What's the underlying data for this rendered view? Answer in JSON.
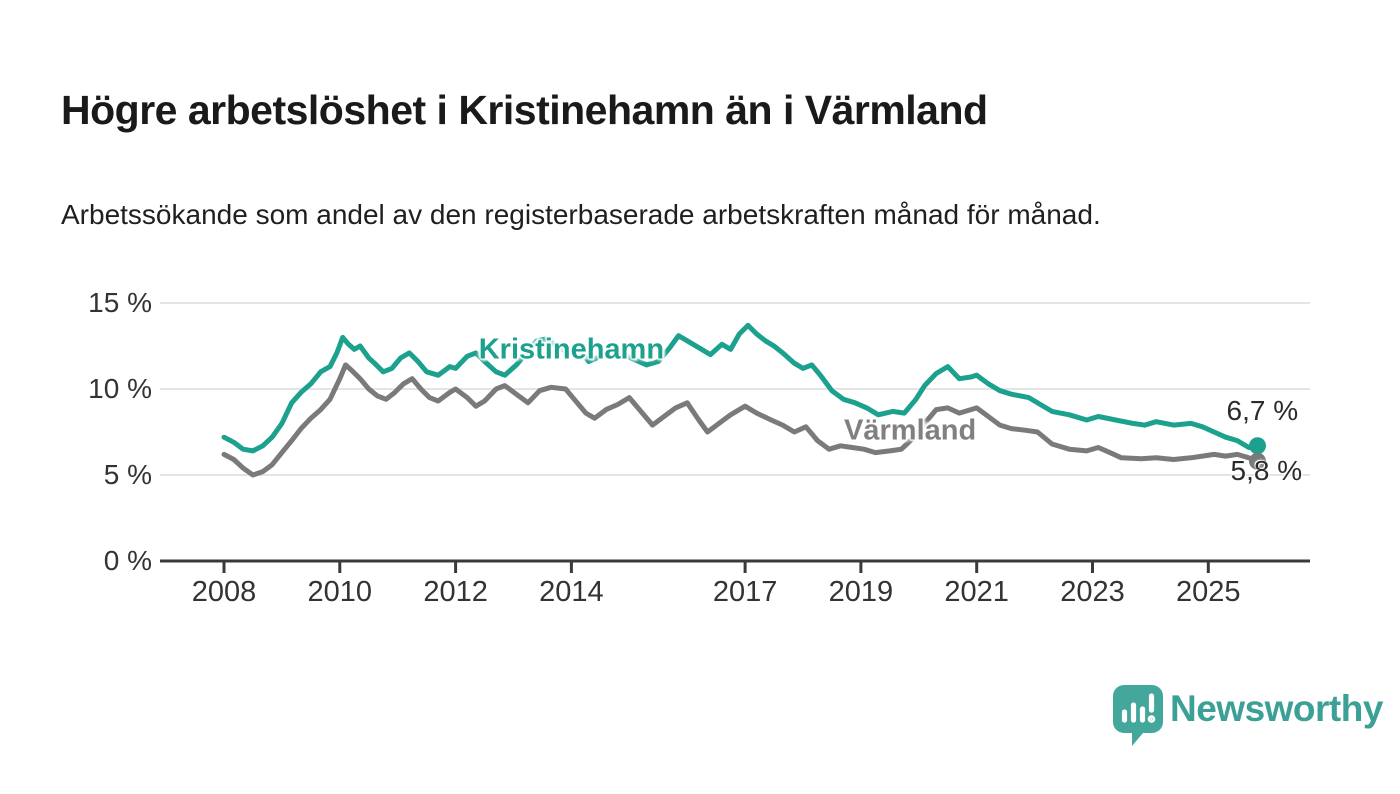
{
  "header": {
    "title": "Högre arbetslöshet i Kristinehamn än i Värmland",
    "subtitle": "Arbetssökande som andel av den registerbaserade arbetskraften månad för månad."
  },
  "footer": {
    "brand": "Newsworthy",
    "brand_color": "#3da096",
    "logo_icon": "newsworthy-speech-bubble-bar-chart-icon",
    "logo_fill": "#44a79b"
  },
  "chart_data": {
    "type": "line",
    "title": "Högre arbetslöshet i Kristinehamn än i Värmland",
    "subtitle": "Arbetssökande som andel av den registerbaserade arbetskraften månad för månad.",
    "xlabel": "",
    "ylabel": "",
    "ylim": [
      0,
      15
    ],
    "xlim": [
      2006.9,
      2026.8
    ],
    "grid": "horizontal",
    "grid_color": "#dcdcdc",
    "axis_color": "#3a3a3a",
    "y_ticks": [
      {
        "label": "15 %",
        "value": 15
      },
      {
        "label": "10 %",
        "value": 10
      },
      {
        "label": "5 %",
        "value": 5
      },
      {
        "label": "0 %",
        "value": 0
      }
    ],
    "x_ticks": [
      {
        "label": "2008",
        "value": 2008
      },
      {
        "label": "2010",
        "value": 2010
      },
      {
        "label": "2012",
        "value": 2012
      },
      {
        "label": "2014",
        "value": 2014
      },
      {
        "label": "2017",
        "value": 2017
      },
      {
        "label": "2019",
        "value": 2019
      },
      {
        "label": "2021",
        "value": 2021
      },
      {
        "label": "2023",
        "value": 2023
      },
      {
        "label": "2025",
        "value": 2025
      }
    ],
    "annotations": [
      {
        "text": "Kristinehamn",
        "x": 2014.0,
        "y": 12.25,
        "color": "#1ba18d"
      },
      {
        "text": "Värmland",
        "x": 2019.85,
        "y": 7.55,
        "color": "#808080"
      }
    ],
    "series": [
      {
        "name": "Kristinehamn",
        "color": "#1ba18d",
        "end_value": 6.7,
        "end_label": "6,7 %",
        "end_label_offset": [
          -31,
          -37
        ],
        "points": [
          [
            2008.0,
            7.2
          ],
          [
            2008.17,
            6.9
          ],
          [
            2008.33,
            6.5
          ],
          [
            2008.5,
            6.4
          ],
          [
            2008.67,
            6.7
          ],
          [
            2008.83,
            7.2
          ],
          [
            2009.0,
            8.0
          ],
          [
            2009.17,
            9.2
          ],
          [
            2009.33,
            9.8
          ],
          [
            2009.5,
            10.3
          ],
          [
            2009.67,
            11.0
          ],
          [
            2009.83,
            11.3
          ],
          [
            2009.95,
            12.1
          ],
          [
            2010.05,
            13.0
          ],
          [
            2010.15,
            12.6
          ],
          [
            2010.25,
            12.3
          ],
          [
            2010.35,
            12.5
          ],
          [
            2010.5,
            11.8
          ],
          [
            2010.6,
            11.5
          ],
          [
            2010.75,
            11.0
          ],
          [
            2010.9,
            11.2
          ],
          [
            2011.05,
            11.8
          ],
          [
            2011.2,
            12.1
          ],
          [
            2011.35,
            11.6
          ],
          [
            2011.5,
            11.0
          ],
          [
            2011.7,
            10.8
          ],
          [
            2011.9,
            11.3
          ],
          [
            2012.0,
            11.2
          ],
          [
            2012.2,
            11.9
          ],
          [
            2012.35,
            12.1
          ],
          [
            2012.5,
            11.6
          ],
          [
            2012.7,
            11.0
          ],
          [
            2012.85,
            10.8
          ],
          [
            2013.05,
            11.4
          ],
          [
            2013.2,
            12.0
          ],
          [
            2013.4,
            12.8
          ],
          [
            2013.55,
            12.9
          ],
          [
            2013.7,
            12.6
          ],
          [
            2013.9,
            12.2
          ],
          [
            2014.1,
            12.4
          ],
          [
            2014.3,
            11.6
          ],
          [
            2014.5,
            11.9
          ],
          [
            2014.7,
            12.2
          ],
          [
            2014.9,
            12.0
          ],
          [
            2015.1,
            11.7
          ],
          [
            2015.3,
            11.4
          ],
          [
            2015.5,
            11.6
          ],
          [
            2015.7,
            12.4
          ],
          [
            2015.85,
            13.1
          ],
          [
            2016.0,
            12.8
          ],
          [
            2016.2,
            12.4
          ],
          [
            2016.4,
            12.0
          ],
          [
            2016.6,
            12.6
          ],
          [
            2016.75,
            12.3
          ],
          [
            2016.9,
            13.2
          ],
          [
            2017.05,
            13.7
          ],
          [
            2017.2,
            13.2
          ],
          [
            2017.35,
            12.8
          ],
          [
            2017.5,
            12.5
          ],
          [
            2017.65,
            12.1
          ],
          [
            2017.85,
            11.5
          ],
          [
            2018.0,
            11.2
          ],
          [
            2018.15,
            11.4
          ],
          [
            2018.3,
            10.8
          ],
          [
            2018.5,
            9.9
          ],
          [
            2018.7,
            9.4
          ],
          [
            2018.9,
            9.2
          ],
          [
            2019.1,
            8.9
          ],
          [
            2019.3,
            8.5
          ],
          [
            2019.55,
            8.7
          ],
          [
            2019.75,
            8.6
          ],
          [
            2019.95,
            9.4
          ],
          [
            2020.1,
            10.2
          ],
          [
            2020.3,
            10.9
          ],
          [
            2020.5,
            11.3
          ],
          [
            2020.7,
            10.6
          ],
          [
            2020.9,
            10.7
          ],
          [
            2021.0,
            10.8
          ],
          [
            2021.2,
            10.3
          ],
          [
            2021.4,
            9.9
          ],
          [
            2021.6,
            9.7
          ],
          [
            2021.9,
            9.5
          ],
          [
            2022.1,
            9.1
          ],
          [
            2022.3,
            8.7
          ],
          [
            2022.6,
            8.5
          ],
          [
            2022.9,
            8.2
          ],
          [
            2023.1,
            8.4
          ],
          [
            2023.4,
            8.2
          ],
          [
            2023.7,
            8.0
          ],
          [
            2023.9,
            7.9
          ],
          [
            2024.1,
            8.1
          ],
          [
            2024.4,
            7.9
          ],
          [
            2024.7,
            8.0
          ],
          [
            2024.9,
            7.8
          ],
          [
            2025.1,
            7.5
          ],
          [
            2025.3,
            7.2
          ],
          [
            2025.5,
            7.0
          ],
          [
            2025.7,
            6.6
          ],
          [
            2025.85,
            6.7
          ]
        ]
      },
      {
        "name": "Värmland",
        "color": "#7a7a7a",
        "end_value": 5.8,
        "end_label": "5,8 %",
        "end_label_offset": [
          -27,
          8
        ],
        "points": [
          [
            2008.0,
            6.2
          ],
          [
            2008.17,
            5.9
          ],
          [
            2008.33,
            5.4
          ],
          [
            2008.5,
            5.0
          ],
          [
            2008.67,
            5.2
          ],
          [
            2008.83,
            5.6
          ],
          [
            2009.0,
            6.3
          ],
          [
            2009.17,
            7.0
          ],
          [
            2009.33,
            7.7
          ],
          [
            2009.5,
            8.3
          ],
          [
            2009.67,
            8.8
          ],
          [
            2009.83,
            9.4
          ],
          [
            2010.0,
            10.6
          ],
          [
            2010.1,
            11.4
          ],
          [
            2010.2,
            11.1
          ],
          [
            2010.35,
            10.6
          ],
          [
            2010.5,
            10.0
          ],
          [
            2010.65,
            9.6
          ],
          [
            2010.8,
            9.4
          ],
          [
            2010.95,
            9.8
          ],
          [
            2011.1,
            10.3
          ],
          [
            2011.25,
            10.6
          ],
          [
            2011.4,
            10.0
          ],
          [
            2011.55,
            9.5
          ],
          [
            2011.7,
            9.3
          ],
          [
            2011.9,
            9.8
          ],
          [
            2012.0,
            10.0
          ],
          [
            2012.2,
            9.5
          ],
          [
            2012.35,
            9.0
          ],
          [
            2012.5,
            9.3
          ],
          [
            2012.7,
            10.0
          ],
          [
            2012.85,
            10.2
          ],
          [
            2013.05,
            9.7
          ],
          [
            2013.25,
            9.2
          ],
          [
            2013.45,
            9.9
          ],
          [
            2013.65,
            10.1
          ],
          [
            2013.9,
            10.0
          ],
          [
            2014.1,
            9.2
          ],
          [
            2014.25,
            8.6
          ],
          [
            2014.4,
            8.3
          ],
          [
            2014.6,
            8.8
          ],
          [
            2014.8,
            9.1
          ],
          [
            2015.0,
            9.5
          ],
          [
            2015.2,
            8.7
          ],
          [
            2015.4,
            7.9
          ],
          [
            2015.6,
            8.4
          ],
          [
            2015.8,
            8.9
          ],
          [
            2016.0,
            9.2
          ],
          [
            2016.2,
            8.2
          ],
          [
            2016.35,
            7.5
          ],
          [
            2016.55,
            8.0
          ],
          [
            2016.75,
            8.5
          ],
          [
            2017.0,
            9.0
          ],
          [
            2017.2,
            8.6
          ],
          [
            2017.45,
            8.2
          ],
          [
            2017.65,
            7.9
          ],
          [
            2017.85,
            7.5
          ],
          [
            2018.05,
            7.8
          ],
          [
            2018.25,
            7.0
          ],
          [
            2018.45,
            6.5
          ],
          [
            2018.65,
            6.7
          ],
          [
            2018.85,
            6.6
          ],
          [
            2019.05,
            6.5
          ],
          [
            2019.25,
            6.3
          ],
          [
            2019.5,
            6.4
          ],
          [
            2019.7,
            6.5
          ],
          [
            2019.95,
            7.3
          ],
          [
            2020.1,
            8.0
          ],
          [
            2020.3,
            8.8
          ],
          [
            2020.5,
            8.9
          ],
          [
            2020.7,
            8.6
          ],
          [
            2020.9,
            8.8
          ],
          [
            2021.0,
            8.9
          ],
          [
            2021.2,
            8.4
          ],
          [
            2021.4,
            7.9
          ],
          [
            2021.6,
            7.7
          ],
          [
            2021.85,
            7.6
          ],
          [
            2022.05,
            7.5
          ],
          [
            2022.3,
            6.8
          ],
          [
            2022.6,
            6.5
          ],
          [
            2022.9,
            6.4
          ],
          [
            2023.1,
            6.6
          ],
          [
            2023.3,
            6.3
          ],
          [
            2023.5,
            6.0
          ],
          [
            2023.85,
            5.95
          ],
          [
            2024.1,
            6.0
          ],
          [
            2024.4,
            5.9
          ],
          [
            2024.7,
            6.0
          ],
          [
            2024.9,
            6.1
          ],
          [
            2025.1,
            6.2
          ],
          [
            2025.3,
            6.1
          ],
          [
            2025.5,
            6.2
          ],
          [
            2025.7,
            6.0
          ],
          [
            2025.85,
            5.8
          ]
        ]
      }
    ]
  }
}
